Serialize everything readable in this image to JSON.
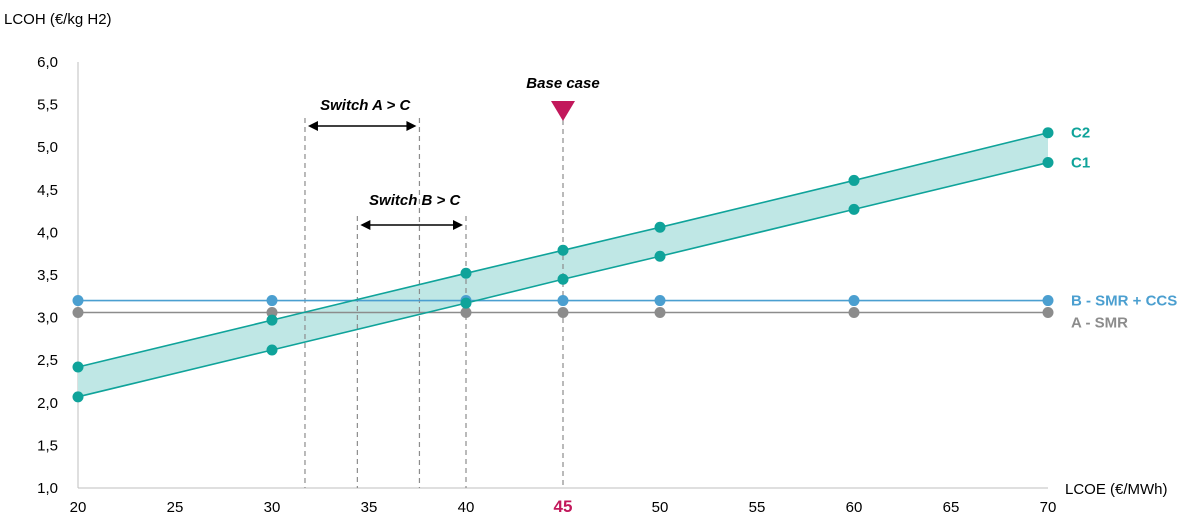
{
  "chart_data": {
    "type": "line",
    "ylabel": "LCOH (€/kg H2)",
    "xlabel": "LCOE (€/MWh)",
    "xlim": [
      20,
      70
    ],
    "ylim": [
      1.0,
      6.0
    ],
    "x_ticks": [
      "20",
      "25",
      "30",
      "35",
      "40",
      "45",
      "50",
      "55",
      "60",
      "65",
      "70"
    ],
    "y_ticks": [
      "1,0",
      "1,5",
      "2,0",
      "2,5",
      "3,0",
      "3,5",
      "4,0",
      "4,5",
      "5,0",
      "5,5",
      "6,0"
    ],
    "grid": false,
    "colors": {
      "teal": "#0fa39a",
      "band": "#bfe7e5",
      "blue": "#4b9fd0",
      "gray": "#8c8c8c",
      "base": "#c2185b"
    },
    "series": [
      {
        "name": "C2",
        "x": [
          20,
          30,
          40,
          45,
          50,
          60,
          70
        ],
        "y": [
          2.42,
          2.97,
          3.52,
          3.79,
          4.06,
          4.61,
          5.17
        ]
      },
      {
        "name": "C1",
        "x": [
          20,
          30,
          40,
          45,
          50,
          60,
          70
        ],
        "y": [
          2.07,
          2.62,
          3.17,
          3.45,
          3.72,
          4.27,
          4.82
        ]
      },
      {
        "name": "B - SMR + CCS",
        "x": [
          20,
          30,
          40,
          45,
          50,
          60,
          70
        ],
        "y": [
          3.2,
          3.2,
          3.2,
          3.2,
          3.2,
          3.2,
          3.2
        ]
      },
      {
        "name": "A - SMR",
        "x": [
          20,
          30,
          40,
          45,
          50,
          60,
          70
        ],
        "y": [
          3.06,
          3.06,
          3.06,
          3.06,
          3.06,
          3.06,
          3.06
        ]
      }
    ],
    "annotations": {
      "base_case": {
        "label": "Base case",
        "x": 45,
        "tick_label": "45"
      },
      "switch_a_c": {
        "label": "Switch A > C",
        "x_from": 31.7,
        "x_to": 37.6
      },
      "switch_b_c": {
        "label": "Switch B > C",
        "x_from": 34.4,
        "x_to": 40.0
      }
    }
  }
}
